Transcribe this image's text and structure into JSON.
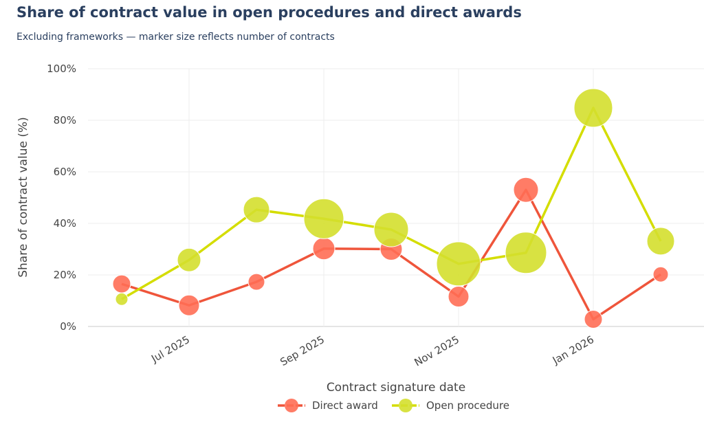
{
  "title": "Share of contract value in open procedures and direct awards",
  "subtitle": "Excluding frameworks — marker size reflects number of contracts",
  "chart_data": {
    "type": "line",
    "title": "Share of contract value in open procedures and direct awards",
    "subtitle": "Excluding frameworks — marker size reflects number of contracts",
    "xlabel": "Contract signature date",
    "ylabel": "Share of contract value (%)",
    "ylim": [
      0,
      100
    ],
    "yticks": [
      0,
      20,
      40,
      60,
      80,
      100
    ],
    "ytick_labels": [
      "0%",
      "20%",
      "40%",
      "60%",
      "80%",
      "100%"
    ],
    "x": [
      "2025-06",
      "2025-07",
      "2025-08",
      "2025-09",
      "2025-10",
      "2025-11",
      "2025-12",
      "2026-01",
      "2026-02"
    ],
    "xticks": [
      "2025-07",
      "2025-09",
      "2025-11",
      "2026-01"
    ],
    "xtick_labels": [
      "Jul 2025",
      "Sep 2025",
      "Nov 2025",
      "Jan 2026"
    ],
    "grid": true,
    "legend_position": "bottom-center",
    "series": [
      {
        "name": "Direct award",
        "color": "#ef553b",
        "marker_color": "#ff6e55",
        "values": [
          16.5,
          8.2,
          17.3,
          30.2,
          30.0,
          11.6,
          53.0,
          2.8,
          20.2
        ],
        "marker_sizes": [
          13,
          15,
          12,
          16,
          16,
          15,
          18,
          13,
          11
        ]
      },
      {
        "name": "Open procedure",
        "color": "#d4dd00",
        "marker_color": "#d4df2e",
        "values": [
          10.6,
          25.8,
          45.3,
          41.8,
          37.6,
          24.3,
          28.6,
          84.8,
          33.1
        ],
        "marker_sizes": [
          9,
          17,
          19,
          29,
          25,
          32,
          30,
          28,
          20
        ]
      }
    ]
  }
}
